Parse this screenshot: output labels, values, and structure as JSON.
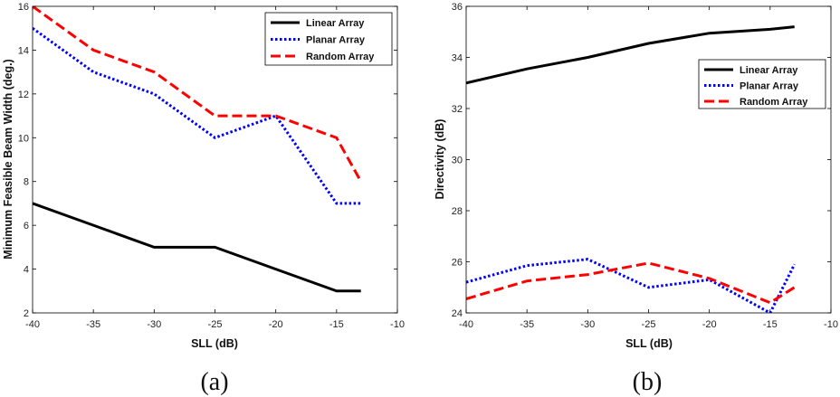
{
  "chart_data": [
    {
      "type": "line",
      "caption": "(a)",
      "xlabel": "SLL (dB)",
      "ylabel": "Minimum Feasible Beam Width (deg.)",
      "xlim": [
        -40,
        -10
      ],
      "ylim": [
        2,
        16
      ],
      "xticks": [
        -40,
        -35,
        -30,
        -25,
        -20,
        -15,
        -10
      ],
      "yticks": [
        2,
        4,
        6,
        8,
        10,
        12,
        14,
        16
      ],
      "legend_position": "top-right",
      "x": [
        -40,
        -35,
        -30,
        -25,
        -20,
        -15,
        -13
      ],
      "series": [
        {
          "name": "Linear Array",
          "color": "#000000",
          "style": "solid",
          "values": [
            7,
            6,
            5,
            5,
            4,
            3,
            3
          ]
        },
        {
          "name": "Planar Array",
          "color": "#0000ff",
          "style": "dotted",
          "values": [
            15,
            13,
            12,
            10,
            11,
            7,
            7
          ]
        },
        {
          "name": "Random Array",
          "color": "#ff0000",
          "style": "dashed",
          "values": [
            16,
            14,
            13,
            11,
            11,
            10,
            8
          ]
        }
      ]
    },
    {
      "type": "line",
      "caption": "(b)",
      "xlabel": "SLL (dB)",
      "ylabel": "Directivity (dB)",
      "xlim": [
        -40,
        -10
      ],
      "ylim": [
        24,
        36
      ],
      "xticks": [
        -40,
        -35,
        -30,
        -25,
        -20,
        -15,
        -10
      ],
      "yticks": [
        24,
        26,
        28,
        30,
        32,
        34,
        36
      ],
      "legend_position": "upper-right",
      "x": [
        -40,
        -35,
        -30,
        -25,
        -20,
        -15,
        -13
      ],
      "series": [
        {
          "name": "Linear Array",
          "color": "#000000",
          "style": "solid",
          "values": [
            33.0,
            33.55,
            34.0,
            34.55,
            34.95,
            35.1,
            35.2
          ]
        },
        {
          "name": "Planar Array",
          "color": "#0000ff",
          "style": "dotted",
          "values": [
            25.2,
            25.85,
            26.1,
            25.0,
            25.3,
            24.0,
            25.9
          ]
        },
        {
          "name": "Random Array",
          "color": "#ff0000",
          "style": "dashed",
          "values": [
            24.55,
            25.25,
            25.5,
            25.95,
            25.35,
            24.4,
            25.0
          ]
        }
      ]
    }
  ]
}
